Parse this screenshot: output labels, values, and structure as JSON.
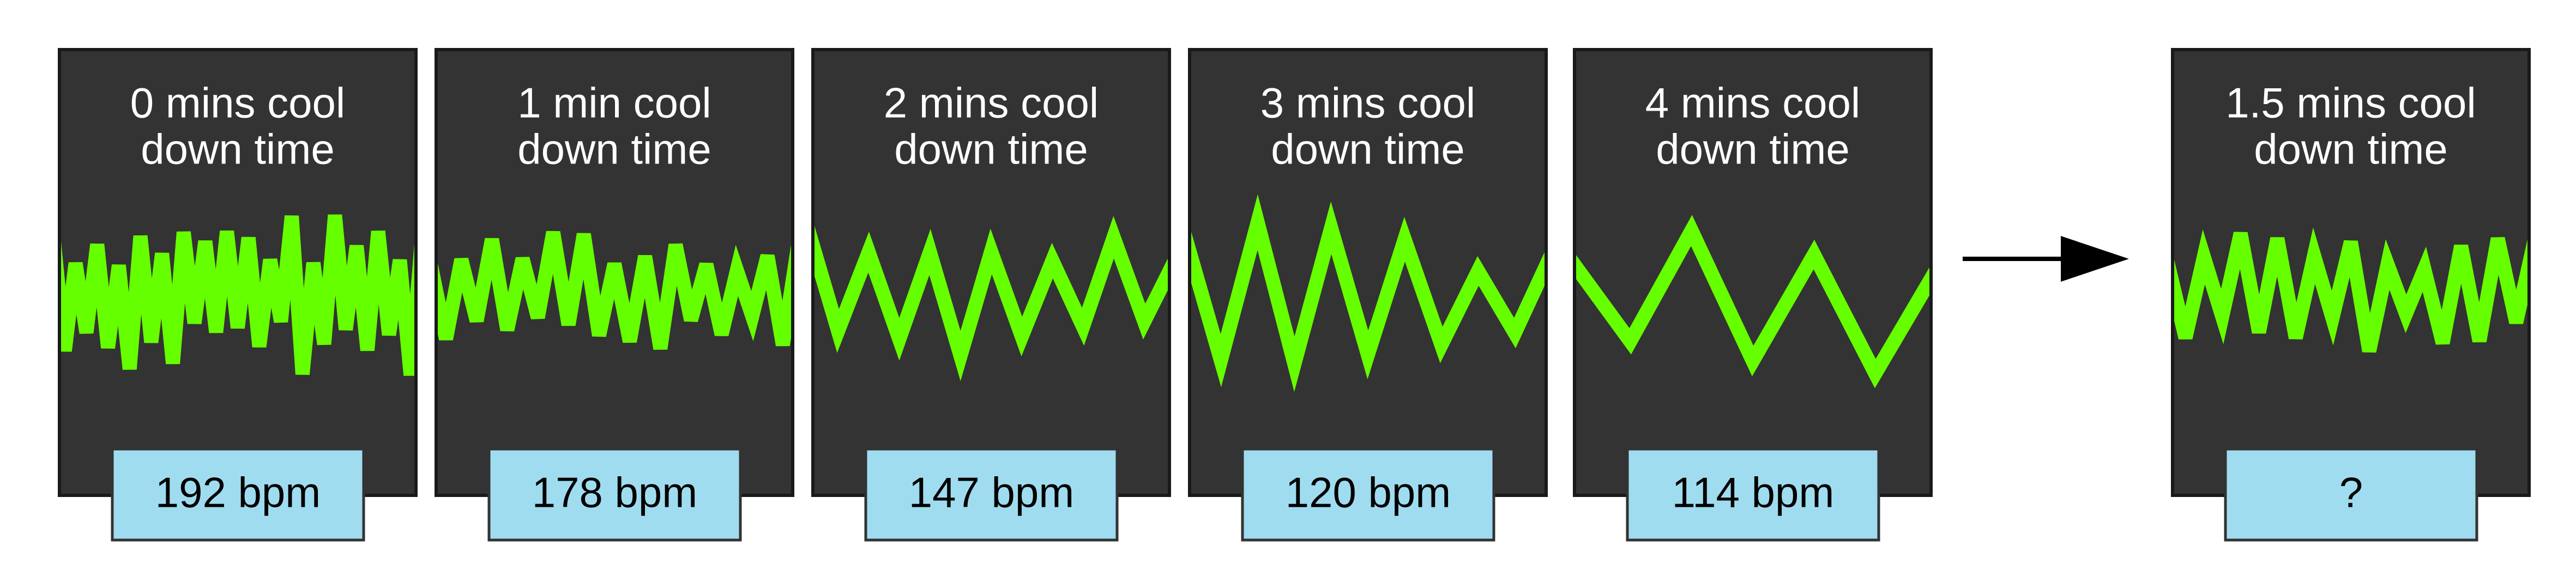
{
  "panels": [
    {
      "title": [
        "0 mins cool",
        "down time"
      ],
      "label": "192 bpm"
    },
    {
      "title": [
        "1 min cool",
        "down time"
      ],
      "label": "178 bpm"
    },
    {
      "title": [
        "2 mins cool",
        "down time"
      ],
      "label": "147 bpm"
    },
    {
      "title": [
        "3 mins cool",
        "down time"
      ],
      "label": "120 bpm"
    },
    {
      "title": [
        "4 mins cool",
        "down time"
      ],
      "label": "114 bpm"
    },
    {
      "title": [
        "1.5 mins cool",
        "down time"
      ],
      "label": "?"
    }
  ]
}
